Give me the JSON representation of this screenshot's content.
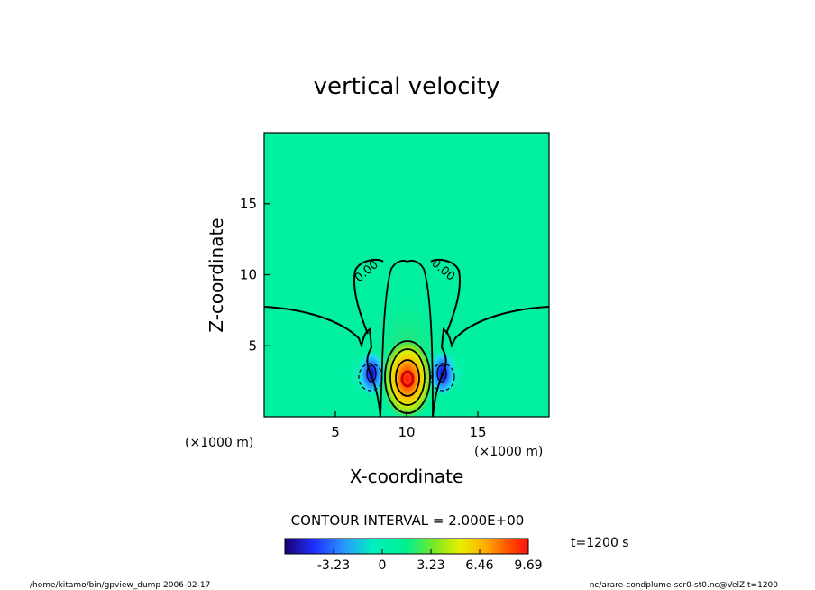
{
  "chart_data": {
    "type": "heatmap",
    "title": "vertical velocity",
    "xlabel": "X-coordinate",
    "ylabel": "Z-coordinate",
    "x_unit": "(×1000 m)",
    "y_unit": "(×1000 m)",
    "xlim": [
      0,
      20
    ],
    "ylim": [
      0,
      20
    ],
    "x_ticks": [
      "5",
      "10",
      "15"
    ],
    "y_ticks": [
      "5",
      "10",
      "15"
    ],
    "contour_interval_label": "CONTOUR INTERVAL = 2.000E+00",
    "contour_labels": [
      "0.00",
      "0.00"
    ],
    "colorbar": {
      "min": -6.46,
      "max": 9.69,
      "ticks": [
        "-3.23",
        "0",
        "3.23",
        "6.46",
        "9.69"
      ],
      "tick_values": [
        -3.23,
        0,
        3.23,
        6.46,
        9.69
      ]
    },
    "time_label": "t=1200 s",
    "field_features": [
      {
        "kind": "updraft",
        "x": 10,
        "z": 2.7,
        "peak": 9.69
      },
      {
        "kind": "downdraft",
        "x": 7.5,
        "z": 2.8,
        "peak": -6.46
      },
      {
        "kind": "downdraft",
        "x": 12.5,
        "z": 2.8,
        "peak": -6.46
      }
    ]
  },
  "footer": {
    "left": "/home/kitamo/bin/gpview_dump  2006-02-17",
    "right": "nc/arare-condplume-scr0-st0.nc@VelZ,t=1200"
  }
}
